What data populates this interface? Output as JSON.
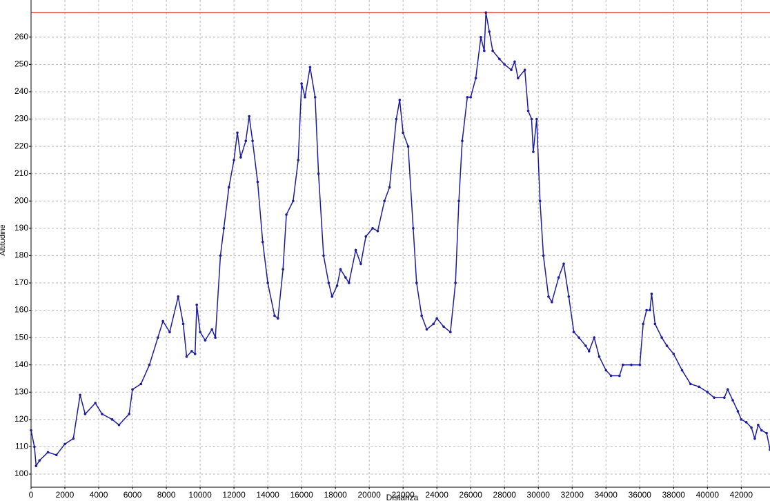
{
  "chart_data": {
    "type": "line",
    "x_label": "Distanza",
    "y_label": "Altitudine",
    "xlim": [
      0,
      43700
    ],
    "ylim": [
      95.2,
      273.6
    ],
    "xticks": [
      0,
      2000,
      4000,
      6000,
      8000,
      10000,
      12000,
      14000,
      16000,
      18000,
      20000,
      22000,
      24000,
      26000,
      28000,
      30000,
      32000,
      34000,
      36000,
      38000,
      40000,
      42000
    ],
    "yticks": [
      100,
      110,
      120,
      130,
      140,
      150,
      160,
      170,
      180,
      190,
      200,
      210,
      220,
      230,
      240,
      250,
      260
    ],
    "grid": true,
    "reference_line": {
      "value": 269,
      "color": "#e00000"
    },
    "series": [
      {
        "color": "#1c1c9c",
        "x": [
          0,
          200,
          300,
          500,
          1000,
          1500,
          2000,
          2500,
          2900,
          3200,
          3800,
          4200,
          4800,
          5200,
          5800,
          6000,
          6500,
          7000,
          7500,
          7800,
          8200,
          8700,
          9000,
          9200,
          9500,
          9700,
          9800,
          10000,
          10300,
          10700,
          10900,
          11200,
          11400,
          11700,
          12000,
          12200,
          12400,
          12700,
          12900,
          13100,
          13400,
          13700,
          14000,
          14400,
          14600,
          14900,
          15100,
          15500,
          15800,
          16000,
          16200,
          16500,
          16800,
          17000,
          17300,
          17600,
          17800,
          18100,
          18300,
          18600,
          18800,
          19200,
          19500,
          19800,
          20200,
          20500,
          20900,
          21200,
          21600,
          21800,
          22000,
          22300,
          22600,
          22800,
          23100,
          23400,
          23800,
          24000,
          24400,
          24800,
          25100,
          25300,
          25500,
          25800,
          26000,
          26300,
          26600,
          26800,
          26900,
          27100,
          27300,
          27700,
          28000,
          28400,
          28600,
          28800,
          29200,
          29400,
          29600,
          29700,
          29900,
          30100,
          30300,
          30600,
          30800,
          31200,
          31500,
          31800,
          32100,
          32400,
          32800,
          33000,
          33300,
          33600,
          34000,
          34300,
          34800,
          35000,
          35500,
          36000,
          36200,
          36400,
          36600,
          36700,
          36900,
          37300,
          37600,
          38000,
          38500,
          39000,
          39500,
          40000,
          40400,
          41000,
          41200,
          41500,
          41800,
          42000,
          42300,
          42600,
          42800,
          43000,
          43200,
          43500,
          43700
        ],
        "values": [
          116,
          110,
          103,
          105,
          108,
          107,
          111,
          113,
          129,
          122,
          126,
          122,
          120,
          118,
          122,
          131,
          133,
          140,
          150,
          156,
          152,
          165,
          155,
          143,
          145,
          144,
          162,
          152,
          149,
          153,
          150,
          180,
          190,
          205,
          215,
          225,
          216,
          222,
          231,
          222,
          207,
          185,
          170,
          158,
          157,
          175,
          195,
          200,
          215,
          243,
          238,
          249,
          238,
          210,
          180,
          170,
          165,
          169,
          175,
          172,
          170,
          182,
          177,
          187,
          190,
          189,
          200,
          205,
          230,
          237,
          225,
          220,
          190,
          170,
          158,
          153,
          155,
          157,
          154,
          152,
          170,
          200,
          222,
          238,
          238,
          245,
          260,
          255,
          269,
          262,
          255,
          252,
          250,
          248,
          251,
          245,
          248,
          233,
          230,
          218,
          230,
          200,
          180,
          165,
          163,
          172,
          177,
          165,
          152,
          150,
          147,
          145,
          150,
          143,
          138,
          136,
          136,
          140,
          140,
          140,
          155,
          160,
          160,
          166,
          155,
          150,
          147,
          144,
          138,
          133,
          132,
          130,
          128,
          128,
          131,
          127,
          123,
          120,
          119,
          117,
          113,
          118,
          116,
          115,
          109
        ]
      }
    ]
  }
}
